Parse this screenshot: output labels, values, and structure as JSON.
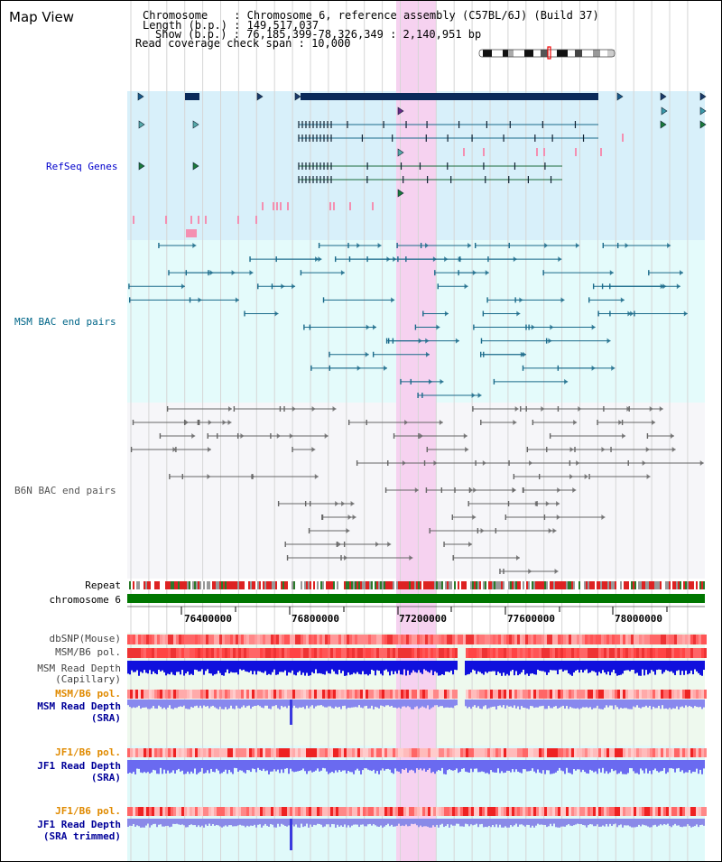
{
  "page": {
    "title": "Map View"
  },
  "header": {
    "chromosome_line": "Chromosome    : Chromosome 6, reference assembly (C57BL/6J) (Build 37)",
    "length_line": "Length (b.p.) : 149,517,037",
    "show_line": "Show (b.p.) : 76,185,399-78,326,349 : 2,140,951 bp",
    "coverage_line": "Read coverage check span : 10,000"
  },
  "tracks": {
    "refseq": "RefSeq Genes",
    "msm_bac": "MSM BAC end pairs",
    "b6n_bac": "B6N BAC end pairs",
    "repeat": "Repeat",
    "chromosome": "chromosome 6",
    "dbsnp": "dbSNP(Mouse)",
    "msm_b6_pol": "MSM/B6 pol.",
    "msm_depth_cap_1": "MSM Read Depth",
    "msm_depth_cap_2": "(Capillary)",
    "msm_b6_pol_2": "MSM/B6 pol.",
    "msm_depth_sra_1": "MSM Read Depth",
    "msm_depth_sra_2": "(SRA)",
    "jf1_b6_pol": "JF1/B6 pol.",
    "jf1_depth_sra_1": "JF1 Read Depth",
    "jf1_depth_sra_2": "(SRA)",
    "jf1_b6_pol_2": "JF1/B6 pol.",
    "jf1_depth_trim_1": "JF1 Read Depth",
    "jf1_depth_trim_2": "(SRA trimmed)"
  },
  "axis": {
    "ticks": [
      "76400000",
      "76800000",
      "77200000",
      "77600000",
      "78000000"
    ]
  },
  "colors": {
    "refseq_label": "#0000cc",
    "msm_label": "#006688",
    "b6n_label": "#555555",
    "pol_orange": "#e08a00",
    "depth_blue": "#000099",
    "highlight": "#f6d2f0",
    "chromosome_bar": "#007700"
  }
}
